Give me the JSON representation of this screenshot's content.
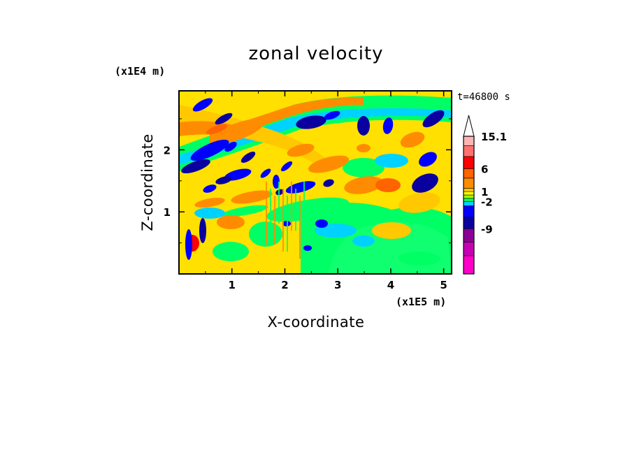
{
  "chart_data": {
    "type": "heatmap",
    "title": "zonal velocity",
    "xlabel": "X-coordinate",
    "ylabel": "Z-coordinate",
    "x_unit": "(x1E5 m)",
    "y_unit": "(x1E4 m)",
    "time_label": "t=46800 s",
    "xlim": [
      0,
      5.15
    ],
    "ylim": [
      0,
      2.95
    ],
    "x_ticks": [
      "1",
      "2",
      "3",
      "4",
      "5"
    ],
    "y_ticks": [
      "1",
      "2"
    ],
    "colorbar": {
      "labels": [
        "15.1",
        "6",
        "1",
        "-2",
        "-9"
      ],
      "colors": [
        "#ff00c8",
        "#c800b4",
        "#8c0096",
        "#0a00a0",
        "#0000ff",
        "#00d2ff",
        "#00ff64",
        "#a0ff00",
        "#ffff00",
        "#ffc800",
        "#ff8c00",
        "#ff6400",
        "#ff0000",
        "#ff7070",
        "#ffb4b4"
      ],
      "extend_max": true
    }
  }
}
